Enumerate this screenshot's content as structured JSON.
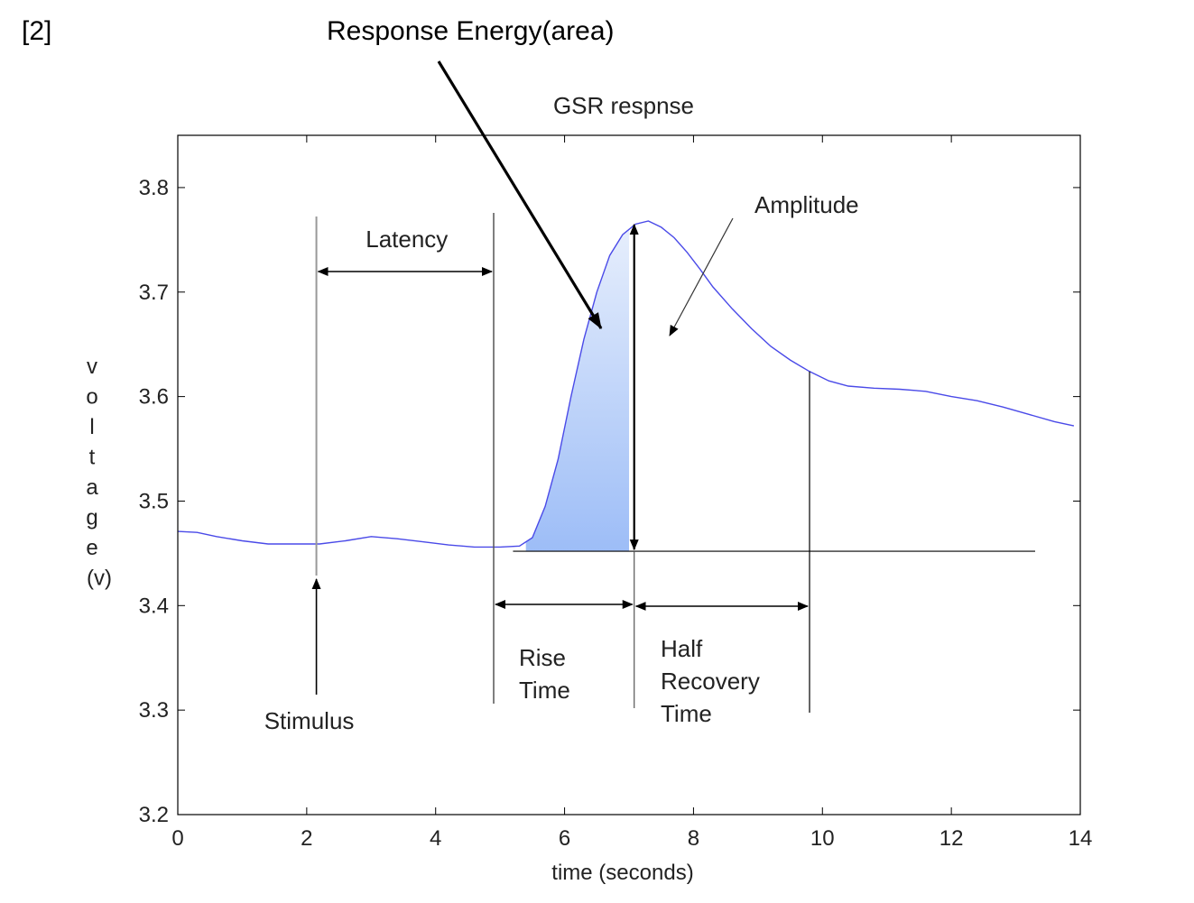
{
  "header": {
    "ref": "[2]",
    "energy_label": "Response Energy(area)"
  },
  "chart_data": {
    "type": "line",
    "title": "GSR respnse",
    "xlabel": "time (seconds)",
    "ylabel": "voltage (v)",
    "xlim": [
      0,
      14
    ],
    "ylim": [
      3.2,
      3.85
    ],
    "xticks": [
      0,
      2,
      4,
      6,
      8,
      10,
      12,
      14
    ],
    "yticks": [
      3.2,
      3.3,
      3.4,
      3.5,
      3.6,
      3.7,
      3.8
    ],
    "xtick_labels": [
      "0",
      "2",
      "4",
      "6",
      "8",
      "10",
      "12",
      "14"
    ],
    "ytick_labels": [
      "3.2",
      "3.3",
      "3.4",
      "3.5",
      "3.6",
      "3.7",
      "3.8"
    ],
    "grid": false,
    "series": [
      {
        "color": "#4a4ae8",
        "x": [
          0,
          0.3,
          0.6,
          1.0,
          1.4,
          1.8,
          2.2,
          2.6,
          3.0,
          3.4,
          3.8,
          4.2,
          4.6,
          5.0,
          5.3,
          5.5,
          5.7,
          5.9,
          6.1,
          6.3,
          6.5,
          6.7,
          6.9,
          7.1,
          7.3,
          7.5,
          7.7,
          7.9,
          8.1,
          8.3,
          8.6,
          8.9,
          9.2,
          9.5,
          9.8,
          10.1,
          10.4,
          10.8,
          11.2,
          11.6,
          12.0,
          12.4,
          12.8,
          13.2,
          13.6,
          13.9
        ],
        "y": [
          3.471,
          3.47,
          3.466,
          3.462,
          3.459,
          3.459,
          3.459,
          3.462,
          3.466,
          3.464,
          3.461,
          3.458,
          3.456,
          3.456,
          3.457,
          3.465,
          3.495,
          3.54,
          3.6,
          3.655,
          3.7,
          3.735,
          3.755,
          3.765,
          3.768,
          3.762,
          3.752,
          3.738,
          3.722,
          3.705,
          3.684,
          3.665,
          3.648,
          3.635,
          3.624,
          3.615,
          3.61,
          3.608,
          3.607,
          3.605,
          3.6,
          3.596,
          3.59,
          3.583,
          3.576,
          3.572
        ]
      }
    ],
    "shaded_region": {
      "x_from": 5.4,
      "x_to": 7.0,
      "label": "Response Energy(area)"
    },
    "baseline": {
      "y": 3.452,
      "x_from": 5.2,
      "x_to": 13.3
    },
    "markers": {
      "stimulus_x": 2.15,
      "latency_end_x": 4.9,
      "peak_x": 7.15,
      "peak_y": 3.768,
      "half_recovery_x": 9.8,
      "half_recovery_y": 3.624
    },
    "annotations": {
      "latency": "Latency",
      "amplitude": "Amplitude",
      "stimulus": "Stimulus",
      "rise_time": [
        "Rise",
        "Time"
      ],
      "half_recovery": [
        "Half",
        "Recovery",
        "Time"
      ]
    }
  }
}
